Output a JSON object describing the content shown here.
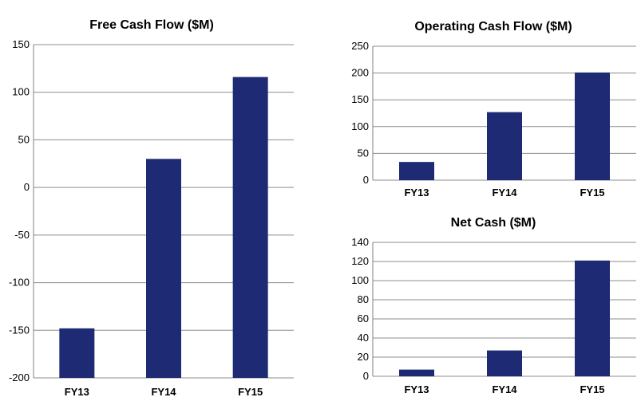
{
  "colors": {
    "bar": "#1f2a75",
    "grid": "#8c8c8c"
  },
  "chart_data": [
    {
      "type": "bar",
      "title": "Free Cash Flow ($M)",
      "categories": [
        "FY13",
        "FY14",
        "FY15"
      ],
      "values": [
        -148,
        30,
        116
      ],
      "ylim": [
        -200,
        150
      ],
      "yticks": [
        150,
        100,
        50,
        0,
        -50,
        -100,
        -150,
        -200
      ],
      "grid": true
    },
    {
      "type": "bar",
      "title": "Operating Cash Flow ($M)",
      "categories": [
        "FY13",
        "FY14",
        "FY15"
      ],
      "values": [
        34,
        127,
        201
      ],
      "ylim": [
        0,
        250
      ],
      "yticks": [
        250,
        200,
        150,
        100,
        50,
        0
      ],
      "grid": true
    },
    {
      "type": "bar",
      "title": "Net Cash ($M)",
      "categories": [
        "FY13",
        "FY14",
        "FY15"
      ],
      "values": [
        7,
        27,
        121
      ],
      "ylim": [
        0,
        140
      ],
      "yticks": [
        140,
        120,
        100,
        80,
        60,
        40,
        20,
        0
      ],
      "grid": true
    }
  ]
}
